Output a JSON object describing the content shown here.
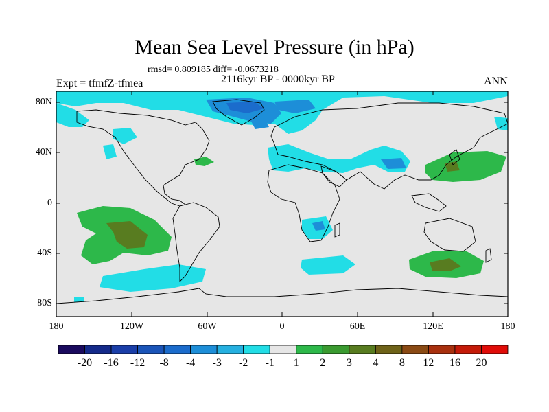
{
  "title": "Mean Sea Level Pressure (in hPa)",
  "stats": "rmsd= 0.809185 diff= -0.0673218",
  "period": "2116kyr BP - 0000kyr BP",
  "experiment": "Expt = tfmfZ-tfmea",
  "season": "ANN",
  "map": {
    "projection": "equirectangular",
    "lon_range": [
      -180,
      180
    ],
    "lat_range": [
      -90,
      90
    ],
    "lat_ticks": [
      "80N",
      "40N",
      "0",
      "40S",
      "80S"
    ],
    "lon_ticks": [
      "180",
      "120W",
      "60W",
      "0",
      "60E",
      "120E",
      "180"
    ]
  },
  "colorbar": {
    "labels": [
      "-20",
      "-16",
      "-12",
      "-8",
      "-4",
      "-3",
      "-2",
      "-1",
      "1",
      "2",
      "3",
      "4",
      "8",
      "12",
      "16",
      "20"
    ],
    "colors": [
      "#1a0a5e",
      "#142a8a",
      "#1a3ea8",
      "#1a54b8",
      "#1b6ccc",
      "#1d8ed8",
      "#25b0e0",
      "#22dde6",
      "#e6e6e6",
      "#2db84a",
      "#3a9a30",
      "#587c20",
      "#6e6218",
      "#8a4a14",
      "#a8300e",
      "#c41a08",
      "#e00c08"
    ]
  },
  "colors": {
    "land_background": "#e6e6e6",
    "negative_1": "#22dde6",
    "negative_2": "#1d8ed8",
    "negative_3": "#1b6ccc",
    "positive_1": "#2db84a",
    "positive_2": "#3a9a30",
    "positive_3": "#587c20"
  }
}
